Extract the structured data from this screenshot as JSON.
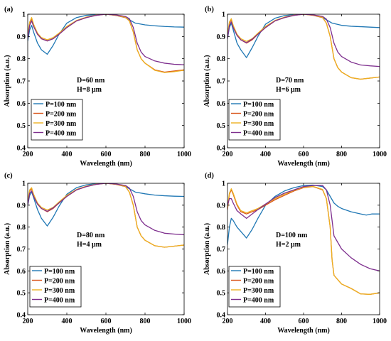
{
  "chart_data": [
    {
      "type": "line",
      "panel_label": "(a)",
      "annotation": [
        "D=60 nm",
        "H=8 μm"
      ],
      "xlabel": "Wavelength (nm)",
      "ylabel": "Absorption (a.u.)",
      "xlim": [
        200,
        1000
      ],
      "ylim": [
        0.4,
        1.0
      ],
      "xticks": [
        200,
        400,
        600,
        800,
        1000
      ],
      "yticks": [
        0.4,
        0.5,
        0.6,
        0.7,
        0.8,
        0.9,
        1.0
      ],
      "ytick_labels": [
        "0.4",
        "0.5",
        "0.6",
        "0.7",
        "0.8",
        "0.9",
        "1"
      ],
      "legend_position": "lower-left",
      "series": [
        {
          "name": "P=100 nm",
          "color": "#1f77b4",
          "x": [
            200,
            210,
            220,
            230,
            250,
            270,
            300,
            330,
            360,
            400,
            450,
            500,
            550,
            600,
            650,
            700,
            720,
            750,
            800,
            850,
            900,
            950,
            1000
          ],
          "y": [
            0.88,
            0.93,
            0.95,
            0.92,
            0.87,
            0.84,
            0.82,
            0.86,
            0.91,
            0.96,
            0.985,
            0.995,
            0.998,
            1.0,
            0.995,
            0.985,
            0.975,
            0.96,
            0.952,
            0.948,
            0.945,
            0.943,
            0.942
          ]
        },
        {
          "name": "P=200 nm",
          "color": "#d95319",
          "x": [
            200,
            210,
            220,
            230,
            250,
            270,
            300,
            330,
            360,
            400,
            450,
            500,
            550,
            600,
            650,
            700,
            720,
            740,
            760,
            780,
            800,
            850,
            900,
            950,
            1000
          ],
          "y": [
            0.9,
            0.96,
            0.98,
            0.95,
            0.91,
            0.89,
            0.88,
            0.89,
            0.91,
            0.94,
            0.97,
            0.985,
            0.995,
            1.0,
            0.995,
            0.985,
            0.97,
            0.92,
            0.84,
            0.8,
            0.78,
            0.75,
            0.74,
            0.745,
            0.75
          ]
        },
        {
          "name": "P=300 nm",
          "color": "#edb120",
          "x": [
            200,
            210,
            220,
            230,
            250,
            270,
            300,
            330,
            360,
            400,
            450,
            500,
            550,
            600,
            650,
            700,
            720,
            740,
            760,
            780,
            800,
            850,
            900,
            950,
            1000
          ],
          "y": [
            0.91,
            0.965,
            0.985,
            0.955,
            0.915,
            0.895,
            0.885,
            0.895,
            0.915,
            0.945,
            0.972,
            0.987,
            0.996,
            1.0,
            0.996,
            0.986,
            0.97,
            0.92,
            0.84,
            0.8,
            0.78,
            0.748,
            0.738,
            0.742,
            0.748
          ]
        },
        {
          "name": "P=400 nm",
          "color": "#7e2f8e",
          "x": [
            200,
            210,
            220,
            230,
            250,
            270,
            300,
            330,
            360,
            400,
            450,
            500,
            550,
            600,
            650,
            700,
            720,
            740,
            760,
            780,
            800,
            850,
            900,
            950,
            1000
          ],
          "y": [
            0.89,
            0.95,
            0.97,
            0.945,
            0.91,
            0.89,
            0.88,
            0.89,
            0.91,
            0.94,
            0.97,
            0.985,
            0.995,
            1.0,
            0.997,
            0.99,
            0.98,
            0.94,
            0.87,
            0.83,
            0.81,
            0.79,
            0.78,
            0.775,
            0.773
          ]
        }
      ]
    },
    {
      "type": "line",
      "panel_label": "(b)",
      "annotation": [
        "D=70 nm",
        "H=6 μm"
      ],
      "xlabel": "Wavelength (nm)",
      "ylabel": "Absorption (a.u.)",
      "xlim": [
        200,
        1000
      ],
      "ylim": [
        0.4,
        1.0
      ],
      "xticks": [
        200,
        400,
        600,
        800,
        1000
      ],
      "yticks": [
        0.4,
        0.5,
        0.6,
        0.7,
        0.8,
        0.9,
        1.0
      ],
      "ytick_labels": [
        "0.4",
        "0.5",
        "0.6",
        "0.7",
        "0.8",
        "0.9",
        "1"
      ],
      "legend_position": "lower-left",
      "series": [
        {
          "name": "P=100 nm",
          "color": "#1f77b4",
          "x": [
            200,
            210,
            220,
            230,
            250,
            270,
            300,
            330,
            360,
            400,
            450,
            500,
            550,
            600,
            650,
            700,
            720,
            750,
            800,
            850,
            900,
            950,
            1000
          ],
          "y": [
            0.89,
            0.94,
            0.96,
            0.93,
            0.87,
            0.84,
            0.805,
            0.85,
            0.9,
            0.955,
            0.982,
            0.994,
            0.998,
            1.0,
            0.996,
            0.985,
            0.975,
            0.96,
            0.95,
            0.946,
            0.944,
            0.942,
            0.94
          ]
        },
        {
          "name": "P=200 nm",
          "color": "#d95319",
          "x": [
            200,
            210,
            220,
            230,
            250,
            270,
            300,
            330,
            360,
            400,
            450,
            500,
            550,
            600,
            650,
            700,
            720,
            740,
            760,
            780,
            800,
            850,
            900,
            950,
            1000
          ],
          "y": [
            0.9,
            0.96,
            0.975,
            0.945,
            0.905,
            0.885,
            0.87,
            0.885,
            0.91,
            0.94,
            0.97,
            0.985,
            0.995,
            1.0,
            0.995,
            0.985,
            0.96,
            0.9,
            0.8,
            0.76,
            0.74,
            0.715,
            0.708,
            0.713,
            0.718
          ]
        },
        {
          "name": "P=300 nm",
          "color": "#edb120",
          "x": [
            200,
            210,
            220,
            230,
            250,
            270,
            300,
            330,
            360,
            400,
            450,
            500,
            550,
            600,
            650,
            700,
            720,
            740,
            760,
            780,
            800,
            850,
            900,
            950,
            1000
          ],
          "y": [
            0.91,
            0.965,
            0.98,
            0.95,
            0.91,
            0.89,
            0.878,
            0.89,
            0.915,
            0.945,
            0.972,
            0.987,
            0.996,
            1.0,
            0.996,
            0.986,
            0.96,
            0.9,
            0.8,
            0.76,
            0.74,
            0.715,
            0.708,
            0.713,
            0.718
          ]
        },
        {
          "name": "P=400 nm",
          "color": "#7e2f8e",
          "x": [
            200,
            210,
            220,
            230,
            250,
            270,
            300,
            330,
            360,
            400,
            450,
            500,
            550,
            600,
            650,
            700,
            720,
            740,
            760,
            780,
            800,
            850,
            900,
            950,
            1000
          ],
          "y": [
            0.89,
            0.95,
            0.965,
            0.94,
            0.905,
            0.885,
            0.872,
            0.888,
            0.91,
            0.94,
            0.97,
            0.985,
            0.995,
            1.0,
            0.997,
            0.99,
            0.978,
            0.94,
            0.87,
            0.83,
            0.81,
            0.785,
            0.772,
            0.768,
            0.765
          ]
        }
      ]
    },
    {
      "type": "line",
      "panel_label": "(c)",
      "annotation": [
        "D=80 nm",
        "H=4 μm"
      ],
      "xlabel": "Wavelength (nm)",
      "ylabel": "Absorption (a.u.)",
      "xlim": [
        200,
        1000
      ],
      "ylim": [
        0.4,
        1.0
      ],
      "xticks": [
        200,
        400,
        600,
        800,
        1000
      ],
      "yticks": [
        0.4,
        0.5,
        0.6,
        0.7,
        0.8,
        0.9,
        1.0
      ],
      "ytick_labels": [
        "0.4",
        "0.5",
        "0.6",
        "0.7",
        "0.8",
        "0.9",
        "1"
      ],
      "legend_position": "lower-left",
      "series": [
        {
          "name": "P=100 nm",
          "color": "#1f77b4",
          "x": [
            200,
            210,
            220,
            230,
            250,
            270,
            300,
            330,
            360,
            400,
            450,
            500,
            550,
            600,
            650,
            700,
            720,
            750,
            800,
            850,
            900,
            950,
            1000
          ],
          "y": [
            0.9,
            0.945,
            0.96,
            0.935,
            0.88,
            0.84,
            0.805,
            0.845,
            0.895,
            0.95,
            0.98,
            0.993,
            0.998,
            1.0,
            0.996,
            0.985,
            0.975,
            0.96,
            0.952,
            0.946,
            0.943,
            0.941,
            0.94
          ]
        },
        {
          "name": "P=200 nm",
          "color": "#d95319",
          "x": [
            200,
            210,
            220,
            230,
            250,
            270,
            300,
            330,
            360,
            400,
            450,
            500,
            550,
            600,
            650,
            700,
            720,
            740,
            760,
            780,
            800,
            850,
            900,
            950,
            1000
          ],
          "y": [
            0.91,
            0.965,
            0.975,
            0.945,
            0.905,
            0.885,
            0.87,
            0.885,
            0.91,
            0.94,
            0.97,
            0.985,
            0.995,
            1.0,
            0.995,
            0.985,
            0.96,
            0.9,
            0.8,
            0.76,
            0.74,
            0.715,
            0.708,
            0.713,
            0.718
          ]
        },
        {
          "name": "P=300 nm",
          "color": "#edb120",
          "x": [
            200,
            210,
            220,
            230,
            250,
            270,
            300,
            330,
            360,
            400,
            450,
            500,
            550,
            600,
            650,
            700,
            720,
            740,
            760,
            780,
            800,
            850,
            900,
            950,
            1000
          ],
          "y": [
            0.92,
            0.97,
            0.98,
            0.95,
            0.91,
            0.89,
            0.878,
            0.89,
            0.915,
            0.945,
            0.972,
            0.987,
            0.996,
            1.0,
            0.996,
            0.986,
            0.96,
            0.9,
            0.8,
            0.76,
            0.74,
            0.715,
            0.708,
            0.713,
            0.718
          ]
        },
        {
          "name": "P=400 nm",
          "color": "#7e2f8e",
          "x": [
            200,
            210,
            220,
            230,
            250,
            270,
            300,
            330,
            360,
            400,
            450,
            500,
            550,
            600,
            650,
            700,
            720,
            740,
            760,
            780,
            800,
            850,
            900,
            950,
            1000
          ],
          "y": [
            0.9,
            0.955,
            0.965,
            0.94,
            0.905,
            0.885,
            0.872,
            0.888,
            0.91,
            0.94,
            0.97,
            0.985,
            0.995,
            1.0,
            0.997,
            0.99,
            0.978,
            0.94,
            0.87,
            0.83,
            0.81,
            0.785,
            0.772,
            0.768,
            0.765
          ]
        }
      ]
    },
    {
      "type": "line",
      "panel_label": "(d)",
      "annotation": [
        "D=100 nm",
        "H=2 μm"
      ],
      "xlabel": "Wavelength (nm)",
      "ylabel": "Absorption (a.u.)",
      "xlim": [
        200,
        1000
      ],
      "ylim": [
        0.4,
        1.0
      ],
      "xticks": [
        200,
        400,
        600,
        800,
        1000
      ],
      "yticks": [
        0.4,
        0.5,
        0.6,
        0.7,
        0.8,
        0.9,
        1.0
      ],
      "ytick_labels": [
        "0.4",
        "0.5",
        "0.6",
        "0.7",
        "0.8",
        "0.9",
        "1"
      ],
      "legend_position": "lower-left",
      "series": [
        {
          "name": "P=100 nm",
          "color": "#1f77b4",
          "x": [
            200,
            210,
            220,
            230,
            250,
            270,
            300,
            330,
            360,
            400,
            450,
            500,
            550,
            600,
            650,
            700,
            720,
            740,
            760,
            780,
            800,
            850,
            900,
            930,
            960,
            1000
          ],
          "y": [
            0.72,
            0.8,
            0.84,
            0.83,
            0.8,
            0.78,
            0.75,
            0.79,
            0.84,
            0.9,
            0.94,
            0.965,
            0.98,
            0.99,
            0.992,
            0.985,
            0.97,
            0.94,
            0.91,
            0.895,
            0.885,
            0.87,
            0.86,
            0.855,
            0.86,
            0.86
          ]
        },
        {
          "name": "P=200 nm",
          "color": "#d95319",
          "x": [
            200,
            210,
            220,
            230,
            250,
            270,
            300,
            330,
            360,
            400,
            450,
            500,
            550,
            600,
            650,
            700,
            720,
            740,
            750,
            760,
            780,
            800,
            850,
            900,
            950,
            1000
          ],
          "y": [
            0.88,
            0.95,
            0.97,
            0.95,
            0.9,
            0.87,
            0.86,
            0.87,
            0.88,
            0.9,
            0.925,
            0.945,
            0.965,
            0.98,
            0.985,
            0.97,
            0.93,
            0.8,
            0.65,
            0.58,
            0.56,
            0.54,
            0.52,
            0.495,
            0.493,
            0.5
          ]
        },
        {
          "name": "P=300 nm",
          "color": "#edb120",
          "x": [
            200,
            210,
            220,
            230,
            250,
            270,
            300,
            330,
            360,
            400,
            450,
            500,
            550,
            600,
            650,
            700,
            720,
            740,
            750,
            760,
            780,
            800,
            850,
            900,
            950,
            1000
          ],
          "y": [
            0.89,
            0.955,
            0.975,
            0.955,
            0.905,
            0.875,
            0.865,
            0.875,
            0.885,
            0.905,
            0.93,
            0.95,
            0.968,
            0.982,
            0.986,
            0.972,
            0.93,
            0.8,
            0.65,
            0.58,
            0.56,
            0.54,
            0.52,
            0.495,
            0.493,
            0.5
          ]
        },
        {
          "name": "P=400 nm",
          "color": "#7e2f8e",
          "x": [
            200,
            210,
            220,
            230,
            250,
            270,
            300,
            330,
            360,
            400,
            450,
            500,
            550,
            600,
            650,
            700,
            720,
            740,
            760,
            780,
            800,
            850,
            900,
            950,
            1000
          ],
          "y": [
            0.9,
            0.93,
            0.93,
            0.91,
            0.875,
            0.86,
            0.84,
            0.86,
            0.88,
            0.905,
            0.935,
            0.955,
            0.97,
            0.985,
            0.99,
            0.99,
            0.97,
            0.9,
            0.76,
            0.73,
            0.7,
            0.66,
            0.63,
            0.61,
            0.6
          ]
        }
      ]
    }
  ]
}
